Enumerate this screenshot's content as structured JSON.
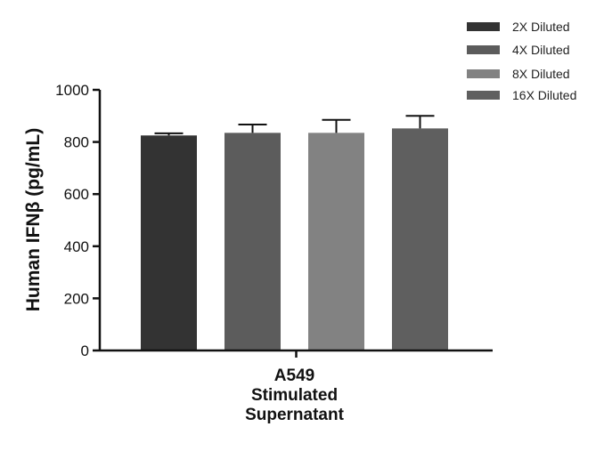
{
  "chart_data": {
    "type": "bar",
    "title": "",
    "ylabel": "Human IFNβ (pg/mL)",
    "xlabel": "",
    "category_lines": [
      "A549",
      "Stimulated",
      "Supernatant"
    ],
    "ylim": [
      0,
      1000
    ],
    "yticks": [
      0,
      200,
      400,
      600,
      800,
      1000
    ],
    "legend_position": "top-right",
    "grid": false,
    "series": [
      {
        "name": "2X Diluted",
        "value": 825,
        "error": 8,
        "color": "#333333"
      },
      {
        "name": "4X Diluted",
        "value": 835,
        "error": 32,
        "color": "#5c5c5c"
      },
      {
        "name": "8X Diluted",
        "value": 835,
        "error": 50,
        "color": "#828282"
      },
      {
        "name": "16X Diluted",
        "value": 852,
        "error": 48,
        "color": "#5f5f5f"
      }
    ]
  }
}
